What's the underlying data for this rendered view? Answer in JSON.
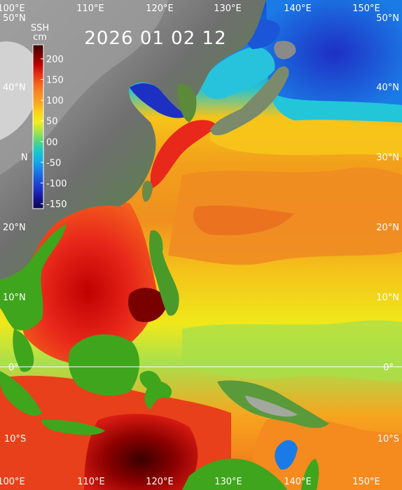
{
  "date_label": "2026 01 02 12",
  "colorbar": {
    "title_line1": "SSH",
    "title_line2": "cm",
    "ticks": [
      "200",
      "150",
      "100",
      "50",
      "00",
      "-50",
      "-100",
      "-150"
    ],
    "colors": [
      "#3a0000",
      "#7a0000",
      "#b80000",
      "#e32d16",
      "#f3601e",
      "#f78a25",
      "#f8a623",
      "#fbd21a",
      "#f2ef1a",
      "#a8e34a",
      "#58d57e",
      "#17c9c9",
      "#12aee8",
      "#1a7fe6",
      "#1b55d8",
      "#1e2fc4",
      "#14138c",
      "#0a0850"
    ]
  },
  "axes": {
    "lon_top": [
      "100°E",
      "110°E",
      "120°E",
      "130°E",
      "140°E",
      "150°E"
    ],
    "lon_bottom": [
      "100°E",
      "110°E",
      "120°E",
      "130°E",
      "140°E",
      "150°E"
    ],
    "lat_left": [
      "50°N",
      "40°N",
      "20°N",
      "10°N",
      "0°",
      "10°S"
    ],
    "lat_right": [
      "50°N",
      "40°N",
      "30°N",
      "20°N",
      "10°N",
      "0°",
      "10°S"
    ],
    "lat_left_partial": "N"
  },
  "palette": {
    "land_high": "#8c8c8c",
    "land_low": "#3fa51d",
    "ocean_base": "#f2a11b",
    "kuroshio_red": "#e8281a",
    "deep_red": "#7a0000",
    "cold_blue": "#1733c8",
    "mid_blue": "#1b7be6",
    "cyan": "#20d8e6"
  }
}
